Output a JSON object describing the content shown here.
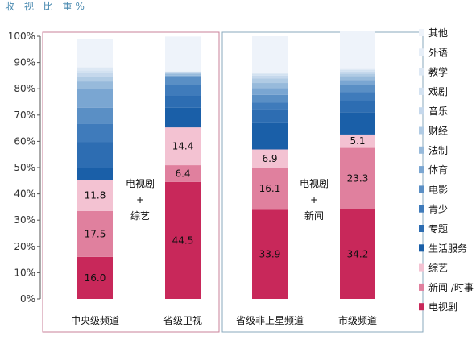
{
  "chart_data": {
    "type": "bar",
    "stacked": true,
    "title": "收 视 比 重%",
    "ylim": [
      0,
      100
    ],
    "yticks": [
      "0%",
      "10%",
      "20%",
      "30%",
      "40%",
      "50%",
      "60%",
      "70%",
      "80%",
      "90%",
      "100%"
    ],
    "categories": [
      "中央级频道",
      "省级卫视",
      "省级非上星频道",
      "市级频道"
    ],
    "groups": [
      {
        "categories": [
          "中央级频道",
          "省级卫视"
        ],
        "note": [
          "电视剧",
          "+",
          "综艺"
        ],
        "border_color": "#c9809a"
      },
      {
        "categories": [
          "省级非上星频道",
          "市级频道"
        ],
        "note": [
          "电视剧",
          "+",
          "新闻"
        ],
        "border_color": "#8aa9bd"
      }
    ],
    "series": [
      {
        "name": "电视剧",
        "color": "#c8285a",
        "label_color": "#111111",
        "values": [
          16.0,
          44.5,
          33.9,
          34.2
        ],
        "labels": [
          "16.0",
          "44.5",
          "33.9",
          "34.2"
        ]
      },
      {
        "name": "新闻 /时事",
        "color": "#e0809e",
        "values": [
          17.5,
          6.4,
          16.1,
          23.3
        ],
        "labels": [
          "17.5",
          "6.4",
          "16.1",
          "23.3"
        ]
      },
      {
        "name": "综艺",
        "color": "#f3c2d2",
        "values": [
          11.8,
          14.4,
          6.9,
          5.1
        ],
        "labels": [
          "11.8",
          "14.4",
          "6.9",
          "5.1"
        ]
      },
      {
        "name": "生活服务",
        "color": "#1a5fa8",
        "values": [
          4.5,
          7.5,
          10.0,
          8.5
        ]
      },
      {
        "name": "专题",
        "color": "#2d6db2",
        "values": [
          10.0,
          4.5,
          5.2,
          4.5
        ]
      },
      {
        "name": "青少",
        "color": "#3f7bbb",
        "values": [
          7.0,
          4.0,
          2.6,
          3.2
        ]
      },
      {
        "name": "电影",
        "color": "#5a8fc5",
        "values": [
          6.0,
          3.2,
          3.0,
          2.5
        ]
      },
      {
        "name": "体育",
        "color": "#7aa6d2",
        "values": [
          7.0,
          0.5,
          2.5,
          2.0
        ]
      },
      {
        "name": "法制",
        "color": "#97badb",
        "values": [
          3.0,
          0.8,
          2.0,
          1.5
        ]
      },
      {
        "name": "财经",
        "color": "#b0cbe4",
        "values": [
          1.7,
          0.4,
          1.8,
          1.0
        ]
      },
      {
        "name": "音乐",
        "color": "#c5d8ec",
        "values": [
          1.5,
          0.3,
          1.0,
          0.8
        ]
      },
      {
        "name": "戏剧",
        "color": "#d3e2f1",
        "values": [
          1.0,
          0.1,
          0.6,
          0.6
        ]
      },
      {
        "name": "教学",
        "color": "#dde8f4",
        "values": [
          0.8,
          0.0,
          0.3,
          0.3
        ]
      },
      {
        "name": "外语",
        "color": "#e6eef7",
        "values": [
          0.5,
          0.0,
          0.1,
          0.2
        ]
      },
      {
        "name": "其他",
        "color": "#eef3fa",
        "values": [
          10.7,
          13.3,
          14.0,
          14.3
        ]
      }
    ]
  }
}
